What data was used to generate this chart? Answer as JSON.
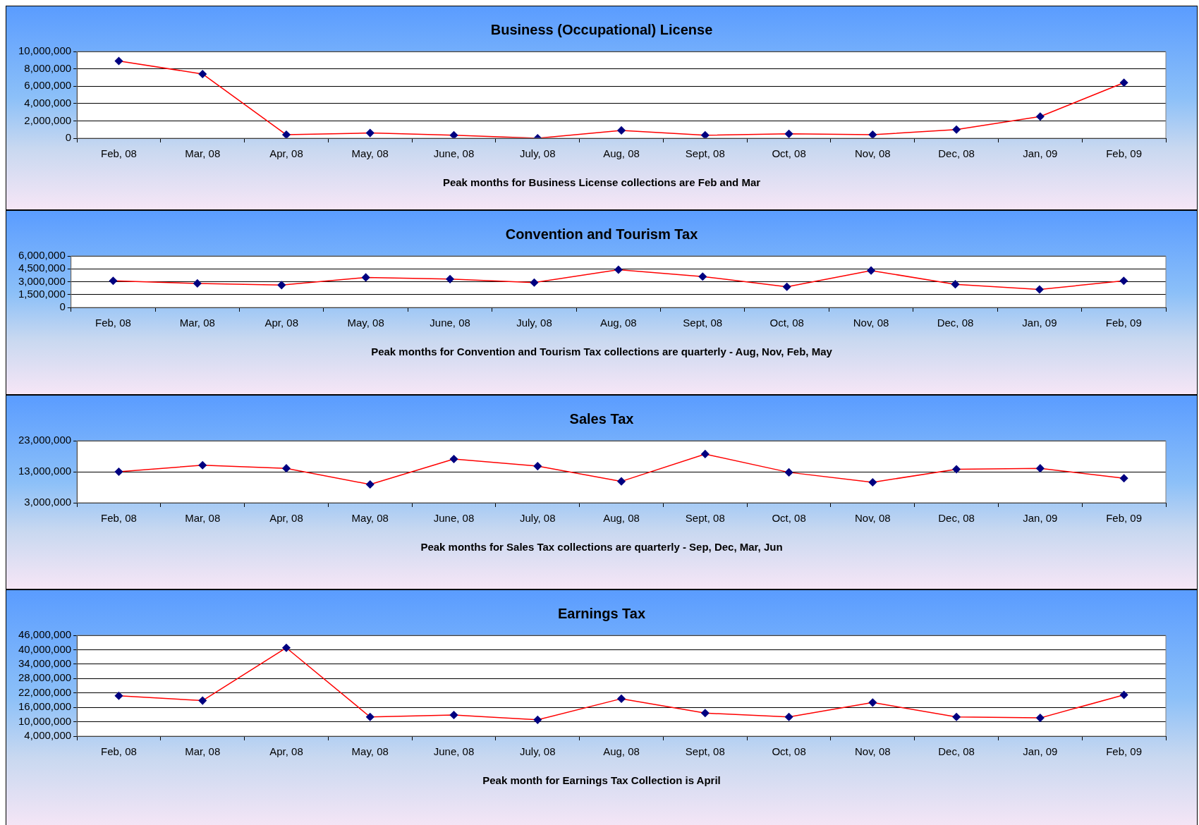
{
  "chart_data": [
    {
      "type": "line",
      "title": "Business (Occupational) License",
      "categories": [
        "Feb, 08",
        "Mar, 08",
        "Apr, 08",
        "May, 08",
        "June, 08",
        "July, 08",
        "Aug, 08",
        "Sept, 08",
        "Oct, 08",
        "Nov, 08",
        "Dec, 08",
        "Jan, 09",
        "Feb, 09"
      ],
      "series": [
        {
          "color": "#ff0000",
          "values": [
            8900000,
            7400000,
            400000,
            600000,
            350000,
            0,
            900000,
            350000,
            500000,
            400000,
            1000000,
            2500000,
            6400000
          ]
        }
      ],
      "ylim": [
        0,
        10000000
      ],
      "yticks": [
        {
          "value": 0,
          "label": "0"
        },
        {
          "value": 2000000,
          "label": "2,000,000"
        },
        {
          "value": 4000000,
          "label": "4,000,000"
        },
        {
          "value": 6000000,
          "label": "6,000,000"
        },
        {
          "value": 8000000,
          "label": "8,000,000"
        },
        {
          "value": 10000000,
          "label": "10,000,000"
        }
      ],
      "grid": "y",
      "legend": false,
      "marker": "diamond",
      "line_style": "solid",
      "annotations": [
        "Peak months for Business  License collections are Feb and Mar"
      ]
    },
    {
      "type": "line",
      "title": "Convention and Tourism Tax",
      "categories": [
        "Feb, 08",
        "Mar, 08",
        "Apr, 08",
        "May, 08",
        "June, 08",
        "July, 08",
        "Aug, 08",
        "Sept, 08",
        "Oct, 08",
        "Nov, 08",
        "Dec, 08",
        "Jan, 09",
        "Feb, 09"
      ],
      "series": [
        {
          "color": "#ff0000",
          "values": [
            3100000,
            2800000,
            2600000,
            3500000,
            3300000,
            2900000,
            4400000,
            3600000,
            2400000,
            4300000,
            2700000,
            2100000,
            3100000
          ]
        }
      ],
      "ylim": [
        0,
        6000000
      ],
      "yticks": [
        {
          "value": 0,
          "label": "0"
        },
        {
          "value": 1500000,
          "label": "1,500,000"
        },
        {
          "value": 3000000,
          "label": "3,000,000"
        },
        {
          "value": 4500000,
          "label": "4,500,000"
        },
        {
          "value": 6000000,
          "label": "6,000,000"
        }
      ],
      "grid": "y",
      "legend": false,
      "marker": "diamond",
      "line_style": "solid",
      "annotations": [
        "Peak months for Convention and Tourism Tax collections are quarterly - Aug, Nov, Feb, May"
      ]
    },
    {
      "type": "line",
      "title": "Sales Tax",
      "categories": [
        "Feb, 08",
        "Mar, 08",
        "Apr, 08",
        "May, 08",
        "June, 08",
        "July, 08",
        "Aug, 08",
        "Sept, 08",
        "Oct, 08",
        "Nov, 08",
        "Dec, 08",
        "Jan, 09",
        "Feb, 09"
      ],
      "series": [
        {
          "color": "#ff0000",
          "values": [
            13000000,
            15100000,
            14100000,
            8900000,
            17100000,
            14800000,
            9900000,
            18700000,
            12800000,
            9600000,
            13800000,
            14100000,
            10900000
          ]
        }
      ],
      "ylim": [
        3000000,
        23000000
      ],
      "yticks": [
        {
          "value": 3000000,
          "label": "3,000,000"
        },
        {
          "value": 13000000,
          "label": "13,000,000"
        },
        {
          "value": 23000000,
          "label": "23,000,000"
        }
      ],
      "grid": "y",
      "legend": false,
      "marker": "diamond",
      "line_style": "solid",
      "annotations": [
        "Peak months for Sales Tax collections are quarterly - Sep, Dec, Mar, Jun"
      ]
    },
    {
      "type": "line",
      "title": "Earnings Tax",
      "categories": [
        "Feb, 08",
        "Mar, 08",
        "Apr, 08",
        "May, 08",
        "June, 08",
        "July, 08",
        "Aug, 08",
        "Sept, 08",
        "Oct, 08",
        "Nov, 08",
        "Dec, 08",
        "Jan, 09",
        "Feb, 09"
      ],
      "series": [
        {
          "color": "#ff0000",
          "values": [
            20800000,
            18800000,
            40800000,
            12000000,
            12800000,
            10800000,
            19600000,
            13600000,
            12000000,
            18000000,
            12000000,
            11600000,
            21200000
          ]
        }
      ],
      "ylim": [
        4000000,
        46000000
      ],
      "yticks": [
        {
          "value": 4000000,
          "label": "4,000,000"
        },
        {
          "value": 10000000,
          "label": "10,000,000"
        },
        {
          "value": 16000000,
          "label": "16,000,000"
        },
        {
          "value": 22000000,
          "label": "22,000,000"
        },
        {
          "value": 28000000,
          "label": "28,000,000"
        },
        {
          "value": 34000000,
          "label": "34,000,000"
        },
        {
          "value": 40000000,
          "label": "40,000,000"
        },
        {
          "value": 46000000,
          "label": "46,000,000"
        }
      ],
      "grid": "y",
      "legend": false,
      "marker": "diamond",
      "line_style": "solid",
      "annotations": [
        "Peak month for Earnings Tax Collection is April"
      ]
    }
  ]
}
